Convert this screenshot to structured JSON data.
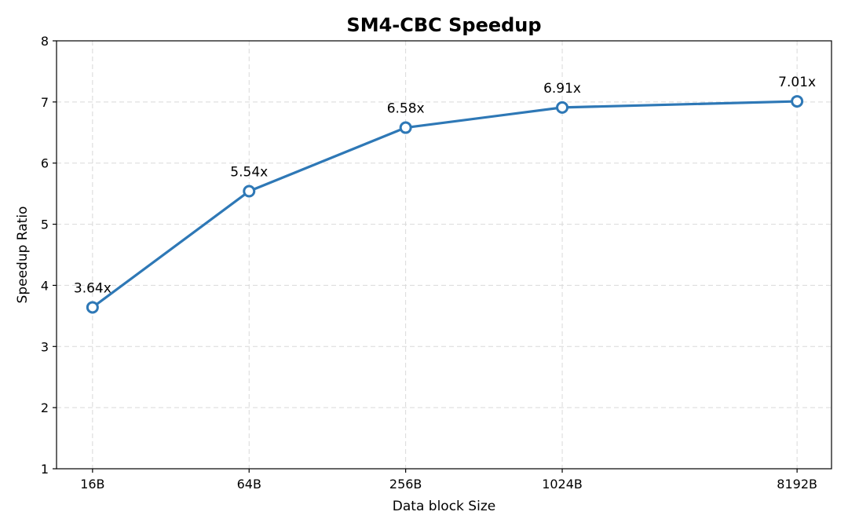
{
  "chart_data": {
    "type": "line",
    "title": "SM4-CBC Speedup",
    "xlabel": "Data block Size",
    "ylabel": "Speedup Ratio",
    "categories": [
      "16B",
      "64B",
      "256B",
      "1024B",
      "8192B"
    ],
    "x_positions": [
      0,
      1,
      2,
      3,
      4.5
    ],
    "xlim": [
      -0.23,
      4.72
    ],
    "series": [
      {
        "values": [
          3.64,
          5.54,
          6.58,
          6.91,
          7.01
        ],
        "labels": [
          "3.64x",
          "5.54x",
          "6.58x",
          "6.91x",
          "7.01x"
        ]
      }
    ],
    "ylim": [
      1,
      8
    ],
    "yticks": [
      1,
      2,
      3,
      4,
      5,
      6,
      7,
      8
    ],
    "grid": true,
    "colors": {
      "line": "#2e78b6",
      "marker_fill": "#ffffff"
    }
  }
}
